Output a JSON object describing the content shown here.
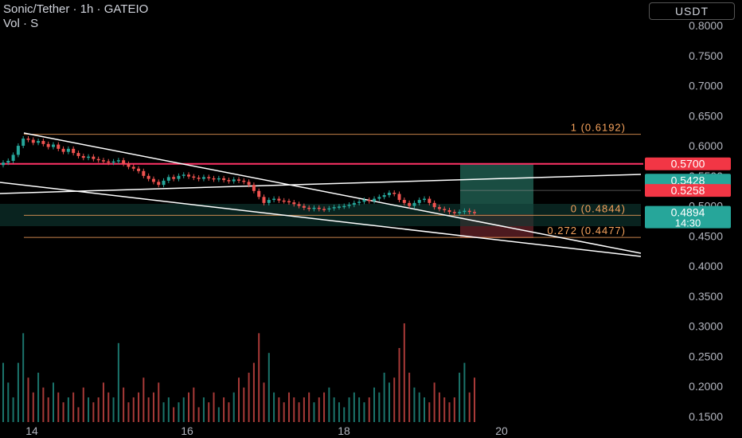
{
  "header": {
    "symbol_line": "Sonic/Tether · 1h · GATEIO",
    "volume_line": "Vol · S"
  },
  "currency_button": "USDT",
  "colors": {
    "background": "#000000",
    "up": "#26a69a",
    "down": "#ef5350",
    "fib_line": "#f7a35c",
    "resistance": "#ff3366",
    "trend": "#ffffff",
    "take_profit_zone": "#1f5a4e",
    "stop_zone": "#5a1f24"
  },
  "chart_data": {
    "type": "candlestick",
    "x_ticks": [
      "14",
      "16",
      "18",
      "20"
    ],
    "y_ticks": [
      "0.8000",
      "0.7500",
      "0.7000",
      "0.6500",
      "0.6000",
      "0.5500",
      "0.5000",
      "0.4500",
      "0.4000",
      "0.3500",
      "0.3000",
      "0.2500",
      "0.2000",
      "0.1500"
    ],
    "y_range": [
      0.13,
      0.82
    ],
    "fib_levels": [
      {
        "label": "1 (0.6192)",
        "value": 0.6192
      },
      {
        "label": "0 (0.4844)",
        "value": 0.4844
      },
      {
        "label": "0.272 (0.4477)",
        "value": 0.4477
      }
    ],
    "price_labels": [
      {
        "text": "0.5700",
        "value": 0.57,
        "color": "#f23645"
      },
      {
        "text": "0.5428",
        "value": 0.5428,
        "color": "#26a69a"
      },
      {
        "text": "0.5258",
        "value": 0.5258,
        "color": "#f23645"
      },
      {
        "text": "0.4894",
        "value": 0.4894,
        "color": "#26a69a",
        "sub": "14:30"
      }
    ],
    "resistance_level": 0.57,
    "close_price": 0.4894,
    "series": [
      {
        "name": "close",
        "values": [
          0.572,
          0.575,
          0.585,
          0.6,
          0.612,
          0.61,
          0.605,
          0.608,
          0.603,
          0.598,
          0.602,
          0.595,
          0.59,
          0.595,
          0.588,
          0.583,
          0.58,
          0.582,
          0.578,
          0.576,
          0.574,
          0.572,
          0.574,
          0.576,
          0.57,
          0.565,
          0.562,
          0.558,
          0.55,
          0.545,
          0.54,
          0.535,
          0.542,
          0.548,
          0.545,
          0.55,
          0.552,
          0.549,
          0.547,
          0.545,
          0.548,
          0.546,
          0.544,
          0.546,
          0.543,
          0.541,
          0.544,
          0.542,
          0.54,
          0.535,
          0.525,
          0.515,
          0.505,
          0.51,
          0.512,
          0.509,
          0.508,
          0.506,
          0.503,
          0.5,
          0.497,
          0.495,
          0.497,
          0.495,
          0.494,
          0.496,
          0.498,
          0.499,
          0.5,
          0.502,
          0.505,
          0.507,
          0.51,
          0.508,
          0.512,
          0.515,
          0.518,
          0.522,
          0.52,
          0.51,
          0.505,
          0.5,
          0.505,
          0.51,
          0.512,
          0.505,
          0.498,
          0.495,
          0.493,
          0.49,
          0.488,
          0.49,
          0.492,
          0.49,
          0.489
        ]
      }
    ],
    "volume_scale_note": "",
    "volumes": [
      0.12,
      0.08,
      0.05,
      0.12,
      0.18,
      0.09,
      0.06,
      0.1,
      0.07,
      0.05,
      0.08,
      0.06,
      0.04,
      0.05,
      0.06,
      0.03,
      0.07,
      0.05,
      0.04,
      0.05,
      0.08,
      0.06,
      0.05,
      0.16,
      0.07,
      0.04,
      0.05,
      0.06,
      0.09,
      0.05,
      0.06,
      0.08,
      0.04,
      0.05,
      0.03,
      0.04,
      0.05,
      0.06,
      0.07,
      0.03,
      0.05,
      0.04,
      0.06,
      0.03,
      0.05,
      0.04,
      0.06,
      0.09,
      0.07,
      0.1,
      0.12,
      0.18,
      0.08,
      0.14,
      0.06,
      0.05,
      0.04,
      0.06,
      0.05,
      0.04,
      0.05,
      0.06,
      0.04,
      0.05,
      0.06,
      0.07,
      0.05,
      0.04,
      0.03,
      0.05,
      0.06,
      0.05,
      0.04,
      0.05,
      0.07,
      0.06,
      0.1,
      0.08,
      0.09,
      0.15,
      0.2,
      0.1,
      0.07,
      0.06,
      0.05,
      0.04,
      0.08,
      0.06,
      0.05,
      0.04,
      0.05,
      0.1,
      0.12,
      0.06,
      0.09
    ]
  }
}
